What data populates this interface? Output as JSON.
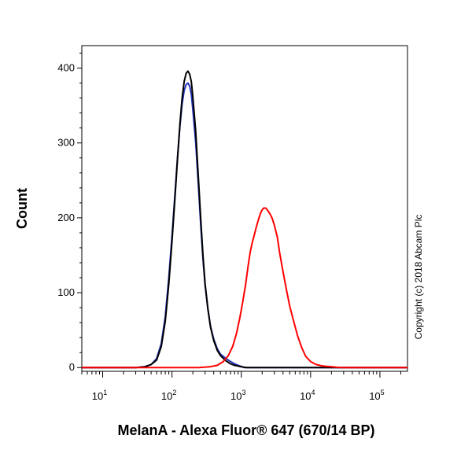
{
  "chart_data": {
    "type": "line",
    "title": "",
    "xlabel": "MelanA - Alexa Fluor® 647 (670/14 BP)",
    "ylabel": "Count",
    "x_scale": "log",
    "xlim": [
      5,
      250000
    ],
    "ylim": [
      -5,
      430
    ],
    "x_ticks": [
      {
        "value": 10,
        "base": "10",
        "exp": "1"
      },
      {
        "value": 100,
        "base": "10",
        "exp": "2"
      },
      {
        "value": 1000,
        "base": "10",
        "exp": "3"
      },
      {
        "value": 10000,
        "base": "10",
        "exp": "4"
      },
      {
        "value": 100000,
        "base": "10",
        "exp": "5"
      }
    ],
    "y_ticks": [
      0,
      100,
      200,
      300,
      400
    ],
    "annotations": [
      "Copyright (c) 2018 Abcam Plc"
    ],
    "series": [
      {
        "color": "#2233bb",
        "points": [
          [
            5,
            0
          ],
          [
            30,
            0
          ],
          [
            40,
            1
          ],
          [
            50,
            4
          ],
          [
            60,
            12
          ],
          [
            70,
            32
          ],
          [
            80,
            68
          ],
          [
            90,
            120
          ],
          [
            100,
            175
          ],
          [
            110,
            230
          ],
          [
            120,
            280
          ],
          [
            130,
            322
          ],
          [
            140,
            352
          ],
          [
            150,
            370
          ],
          [
            160,
            378
          ],
          [
            170,
            380
          ],
          [
            180,
            376
          ],
          [
            190,
            365
          ],
          [
            200,
            345
          ],
          [
            220,
            300
          ],
          [
            240,
            245
          ],
          [
            260,
            190
          ],
          [
            280,
            145
          ],
          [
            300,
            110
          ],
          [
            330,
            78
          ],
          [
            360,
            55
          ],
          [
            400,
            38
          ],
          [
            450,
            25
          ],
          [
            500,
            18
          ],
          [
            600,
            12
          ],
          [
            700,
            8
          ],
          [
            800,
            5
          ],
          [
            900,
            3
          ],
          [
            1000,
            1.5
          ],
          [
            1100,
            0
          ],
          [
            250000,
            0
          ]
        ]
      },
      {
        "color": "#000000",
        "points": [
          [
            5,
            0
          ],
          [
            30,
            0
          ],
          [
            40,
            1
          ],
          [
            50,
            4
          ],
          [
            60,
            10
          ],
          [
            70,
            28
          ],
          [
            80,
            62
          ],
          [
            90,
            112
          ],
          [
            100,
            168
          ],
          [
            110,
            225
          ],
          [
            120,
            278
          ],
          [
            130,
            325
          ],
          [
            140,
            360
          ],
          [
            150,
            382
          ],
          [
            160,
            393
          ],
          [
            170,
            396
          ],
          [
            180,
            392
          ],
          [
            190,
            382
          ],
          [
            200,
            362
          ],
          [
            220,
            315
          ],
          [
            240,
            255
          ],
          [
            260,
            198
          ],
          [
            280,
            150
          ],
          [
            300,
            112
          ],
          [
            330,
            78
          ],
          [
            360,
            54
          ],
          [
            400,
            36
          ],
          [
            450,
            23
          ],
          [
            500,
            16
          ],
          [
            600,
            9
          ],
          [
            700,
            5
          ],
          [
            800,
            3
          ],
          [
            900,
            2
          ],
          [
            1000,
            1
          ],
          [
            1200,
            0
          ],
          [
            250000,
            0
          ]
        ]
      },
      {
        "color": "#ff0000",
        "points": [
          [
            5,
            0
          ],
          [
            250,
            0
          ],
          [
            350,
            1
          ],
          [
            450,
            3
          ],
          [
            550,
            8
          ],
          [
            650,
            16
          ],
          [
            750,
            28
          ],
          [
            850,
            45
          ],
          [
            950,
            66
          ],
          [
            1050,
            88
          ],
          [
            1150,
            110
          ],
          [
            1250,
            135
          ],
          [
            1350,
            155
          ],
          [
            1450,
            168
          ],
          [
            1550,
            178
          ],
          [
            1650,
            188
          ],
          [
            1800,
            200
          ],
          [
            1950,
            209
          ],
          [
            2100,
            213
          ],
          [
            2250,
            213
          ],
          [
            2400,
            210
          ],
          [
            2600,
            205
          ],
          [
            2800,
            199
          ],
          [
            3000,
            190
          ],
          [
            3300,
            175
          ],
          [
            3600,
            152
          ],
          [
            4000,
            128
          ],
          [
            4500,
            103
          ],
          [
            5000,
            82
          ],
          [
            5700,
            62
          ],
          [
            6500,
            42
          ],
          [
            7500,
            26
          ],
          [
            8500,
            15
          ],
          [
            10000,
            8
          ],
          [
            12000,
            4
          ],
          [
            15000,
            2
          ],
          [
            20000,
            1
          ],
          [
            27000,
            0
          ],
          [
            250000,
            0
          ]
        ]
      }
    ]
  }
}
